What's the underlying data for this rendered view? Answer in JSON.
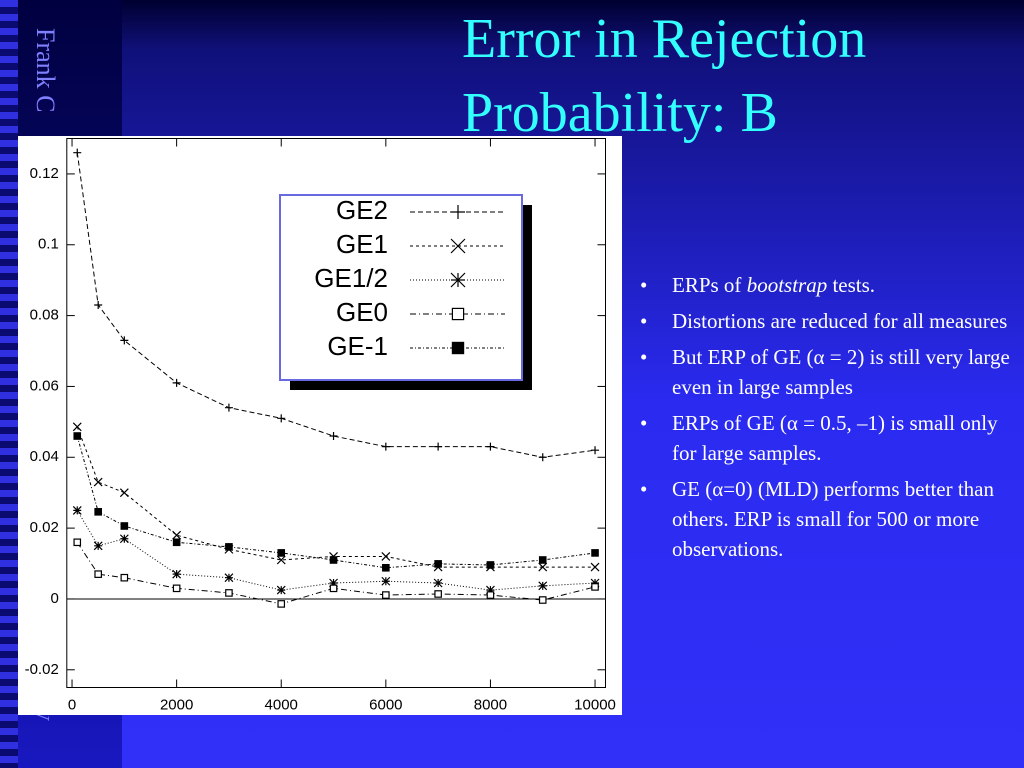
{
  "slide": {
    "sidebar_top": "Frank C",
    "sidebar_bottom": "y",
    "title_lines": [
      "Error in Rejection",
      "Probability: B"
    ],
    "bullets": [
      [
        "ERPs of ",
        "bootstrap",
        " tests."
      ],
      [
        "Distortions are reduced for all measures"
      ],
      [
        "But ERP of GE (α = 2) is still very large even in large samples"
      ],
      [
        "ERPs of GE (α = 0.5, –1) is small only for large samples."
      ],
      [
        "GE (α=0) (MLD) performs better than others. ERP is small for 500 or more observations."
      ]
    ]
  },
  "chart_data": {
    "type": "line",
    "x": [
      100,
      500,
      1000,
      2000,
      3000,
      4000,
      5000,
      6000,
      7000,
      8000,
      9000,
      10000
    ],
    "series": [
      {
        "name": "GE2",
        "color": "#000000",
        "marker": "plus",
        "dash": "5,3",
        "values": [
          0.126,
          0.083,
          0.073,
          0.061,
          0.054,
          0.051,
          0.046,
          0.043,
          0.043,
          0.043,
          0.04,
          0.042
        ]
      },
      {
        "name": "GE1",
        "color": "#000000",
        "marker": "cross",
        "dash": "3,3",
        "values": [
          0.0486,
          0.033,
          0.03,
          0.018,
          0.014,
          0.011,
          0.012,
          0.012,
          0.009,
          0.009,
          0.009,
          0.009
        ]
      },
      {
        "name": "GE1/2",
        "color": "#000000",
        "marker": "star",
        "dash": "1,2",
        "values": [
          0.025,
          0.015,
          0.017,
          0.007,
          0.006,
          0.0025,
          0.0045,
          0.005,
          0.0045,
          0.0025,
          0.0037,
          0.0045
        ]
      },
      {
        "name": "GE0",
        "color": "#000000",
        "marker": "square",
        "dash": "6,3,1,3",
        "values": [
          0.016,
          0.007,
          0.006,
          0.003,
          0.0017,
          -0.0014,
          0.003,
          0.0011,
          0.0014,
          0.0011,
          -0.0003,
          0.0034
        ]
      },
      {
        "name": "GE-1",
        "color": "#000000",
        "marker": "filled-square",
        "dash": "3,2,1,2",
        "values": [
          0.046,
          0.0246,
          0.0206,
          0.016,
          0.0147,
          0.013,
          0.011,
          0.0088,
          0.0099,
          0.0096,
          0.011,
          0.013
        ]
      }
    ],
    "xlim": [
      -100,
      10200
    ],
    "xticks": [
      0,
      2000,
      4000,
      6000,
      8000,
      10000
    ],
    "ylim": [
      -0.025,
      0.13
    ],
    "yticks": [
      -0.02,
      0,
      0.02,
      0.04,
      0.06,
      0.08,
      0.1,
      0.12
    ],
    "zero_line": true,
    "legend": "upper right"
  }
}
